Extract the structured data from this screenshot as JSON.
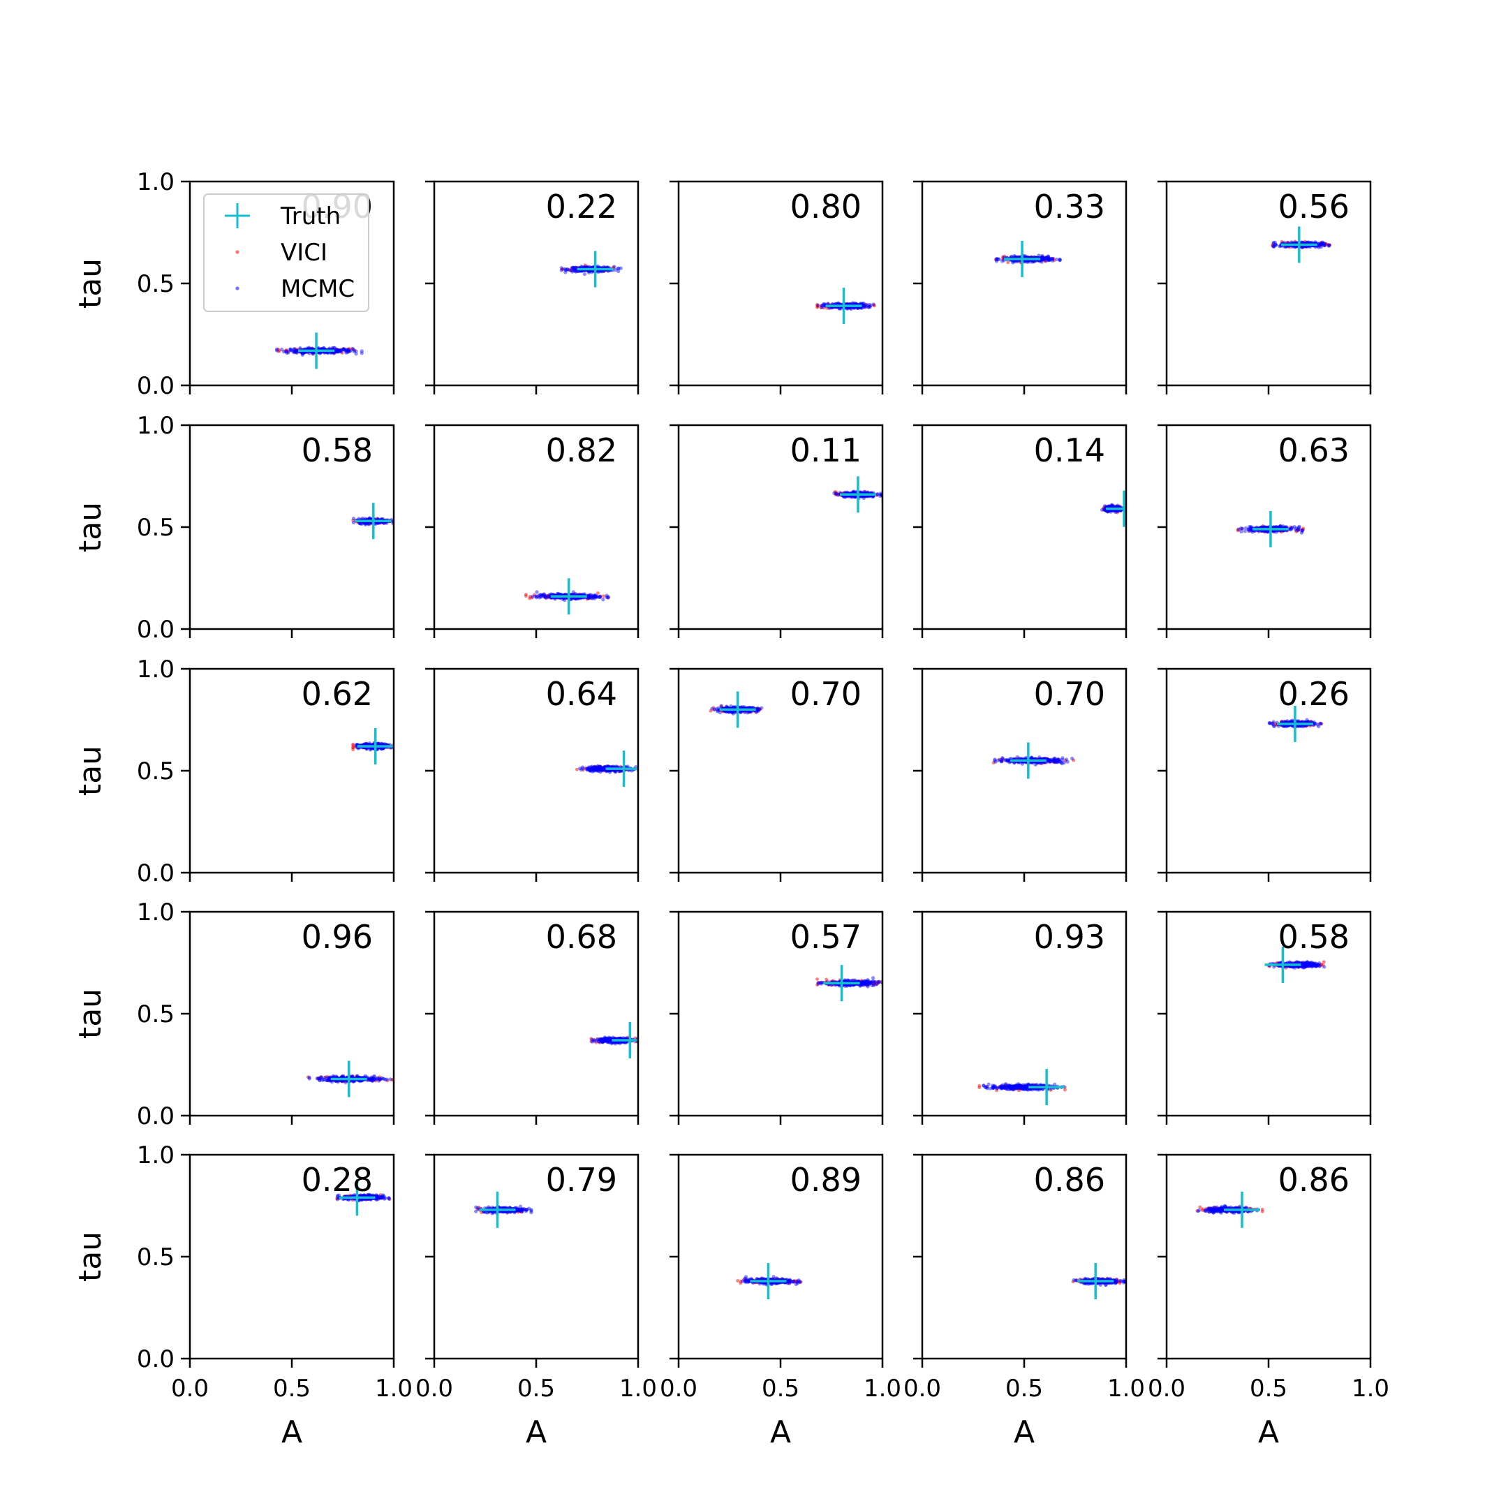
{
  "chart_data": {
    "type": "scatter",
    "grid": false,
    "rows": 5,
    "cols": 5,
    "xlabel": "A",
    "ylabel": "tau",
    "xlim": [
      0,
      1
    ],
    "ylim": [
      0,
      1
    ],
    "x_ticks": [
      "0.0",
      "0.5",
      "1.0"
    ],
    "y_ticks": [
      "0.0",
      "0.5",
      "1.0"
    ],
    "legend": {
      "placement": "upper-left of first panel",
      "entries": [
        {
          "label": "Truth",
          "marker": "plus",
          "color": "#17becf"
        },
        {
          "label": "VICI",
          "marker": "dot",
          "color": "#ff0000"
        },
        {
          "label": "MCMC",
          "marker": "dot",
          "color": "#0000ff"
        }
      ]
    },
    "panels": [
      {
        "label": "0.90",
        "truth": [
          0.62,
          0.17
        ],
        "a_range": [
          0.42,
          0.85
        ]
      },
      {
        "label": "0.22",
        "truth": [
          0.79,
          0.57
        ],
        "a_range": [
          0.62,
          0.92
        ]
      },
      {
        "label": "0.80",
        "truth": [
          0.81,
          0.39
        ],
        "a_range": [
          0.68,
          0.96
        ]
      },
      {
        "label": "0.33",
        "truth": [
          0.49,
          0.62
        ],
        "a_range": [
          0.36,
          0.68
        ]
      },
      {
        "label": "0.56",
        "truth": [
          0.65,
          0.69
        ],
        "a_range": [
          0.52,
          0.8
        ]
      },
      {
        "label": "0.58",
        "truth": [
          0.9,
          0.53
        ],
        "a_range": [
          0.8,
          1.0
        ]
      },
      {
        "label": "0.82",
        "truth": [
          0.66,
          0.16
        ],
        "a_range": [
          0.45,
          0.86
        ]
      },
      {
        "label": "0.11",
        "truth": [
          0.88,
          0.66
        ],
        "a_range": [
          0.76,
          1.0
        ]
      },
      {
        "label": "0.14",
        "truth": [
          0.99,
          0.59
        ],
        "a_range": [
          0.88,
          1.0
        ]
      },
      {
        "label": "0.63",
        "truth": [
          0.51,
          0.49
        ],
        "a_range": [
          0.35,
          0.67
        ]
      },
      {
        "label": "0.62",
        "truth": [
          0.91,
          0.62
        ],
        "a_range": [
          0.8,
          1.0
        ]
      },
      {
        "label": "0.64",
        "truth": [
          0.93,
          0.51
        ],
        "a_range": [
          0.7,
          1.0
        ]
      },
      {
        "label": "0.70",
        "truth": [
          0.29,
          0.8
        ],
        "a_range": [
          0.15,
          0.42
        ]
      },
      {
        "label": "0.70",
        "truth": [
          0.52,
          0.55
        ],
        "a_range": [
          0.35,
          0.75
        ]
      },
      {
        "label": "0.26",
        "truth": [
          0.63,
          0.73
        ],
        "a_range": [
          0.5,
          0.76
        ]
      },
      {
        "label": "0.96",
        "truth": [
          0.78,
          0.18
        ],
        "a_range": [
          0.58,
          1.0
        ]
      },
      {
        "label": "0.68",
        "truth": [
          0.96,
          0.37
        ],
        "a_range": [
          0.77,
          1.0
        ]
      },
      {
        "label": "0.57",
        "truth": [
          0.8,
          0.65
        ],
        "a_range": [
          0.68,
          1.0
        ]
      },
      {
        "label": "0.93",
        "truth": [
          0.61,
          0.14
        ],
        "a_range": [
          0.28,
          0.7
        ]
      },
      {
        "label": "0.58",
        "truth": [
          0.57,
          0.74
        ],
        "a_range": [
          0.5,
          0.79
        ]
      },
      {
        "label": "0.28",
        "truth": [
          0.82,
          0.79
        ],
        "a_range": [
          0.72,
          0.98
        ]
      },
      {
        "label": "0.79",
        "truth": [
          0.31,
          0.73
        ],
        "a_range": [
          0.2,
          0.48
        ]
      },
      {
        "label": "0.89",
        "truth": [
          0.44,
          0.38
        ],
        "a_range": [
          0.29,
          0.6
        ]
      },
      {
        "label": "0.86",
        "truth": [
          0.85,
          0.38
        ],
        "a_range": [
          0.74,
          1.0
        ]
      },
      {
        "label": "0.86",
        "truth": [
          0.37,
          0.73
        ],
        "a_range": [
          0.15,
          0.47
        ]
      }
    ]
  }
}
